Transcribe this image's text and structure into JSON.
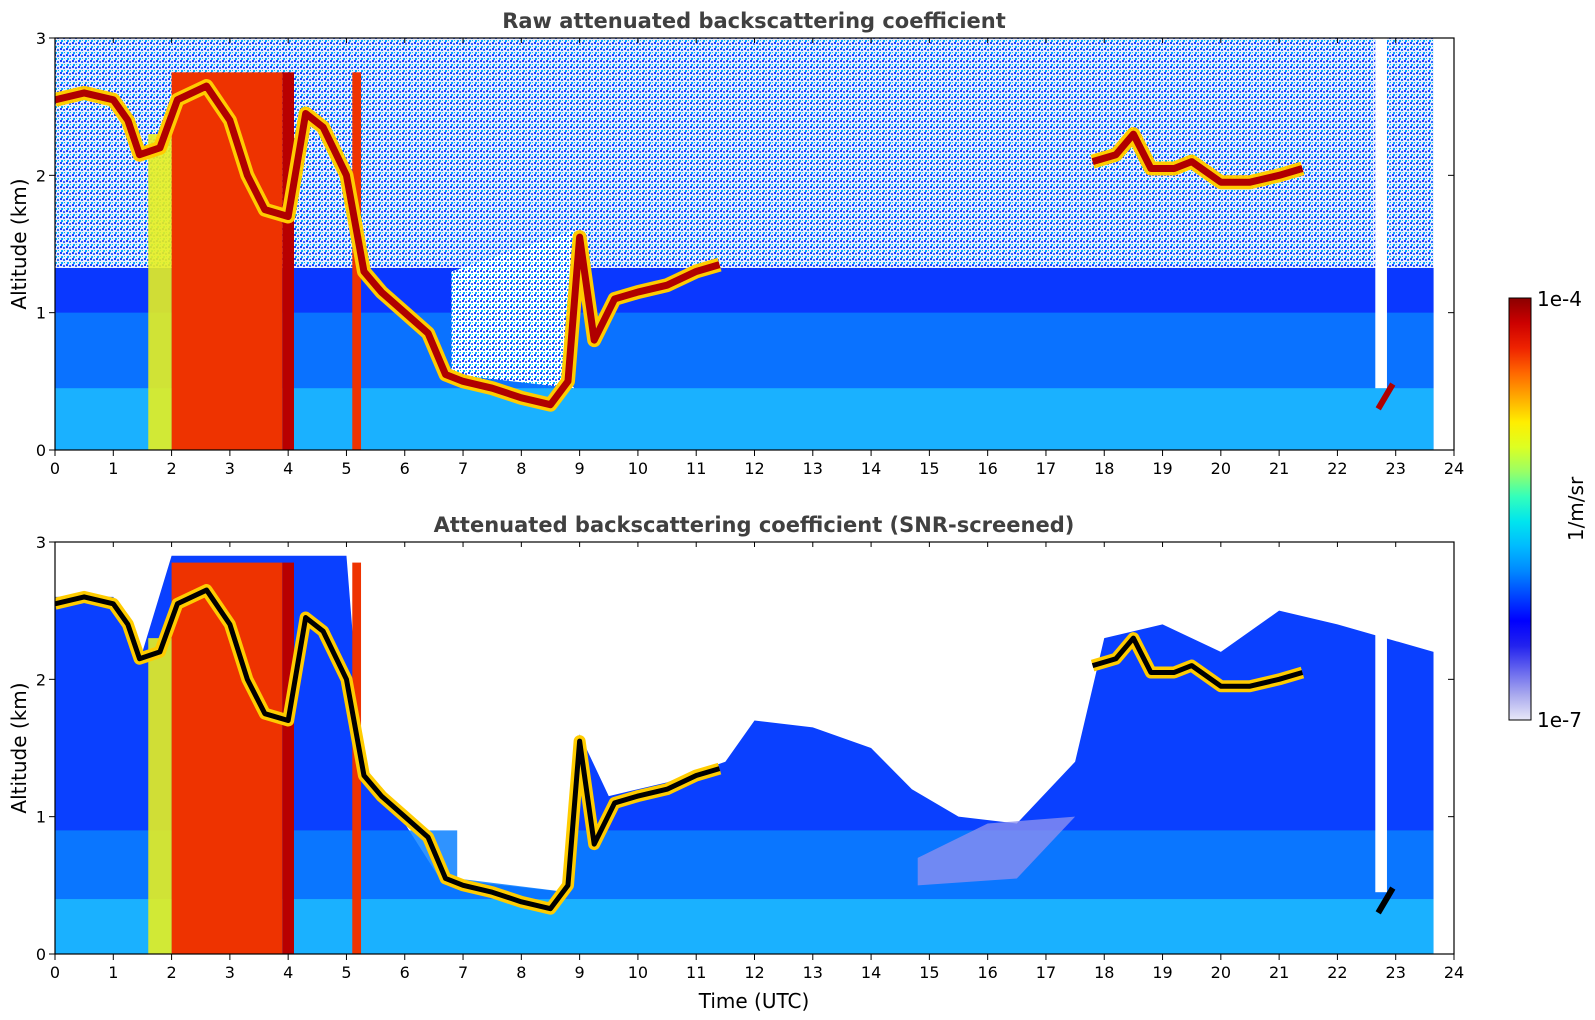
{
  "chart_data": [
    {
      "type": "heatmap",
      "title": "Raw attenuated backscattering coefficient",
      "xlabel": "",
      "ylabel": "Altitude (km)",
      "xlim": [
        0,
        24
      ],
      "ylim": [
        0,
        3
      ],
      "x_ticks": [
        "0",
        "1",
        "2",
        "3",
        "4",
        "5",
        "6",
        "7",
        "8",
        "9",
        "10",
        "11",
        "12",
        "13",
        "14",
        "15",
        "16",
        "17",
        "18",
        "19",
        "20",
        "21",
        "22",
        "23",
        "24"
      ],
      "y_ticks": [
        "0",
        "1",
        "2",
        "3"
      ],
      "screened": false,
      "features": {
        "cloud_layer": [
          [
            0,
            2.55
          ],
          [
            0.5,
            2.6
          ],
          [
            1.0,
            2.55
          ],
          [
            1.25,
            2.4
          ],
          [
            1.45,
            2.15
          ],
          [
            1.8,
            2.2
          ],
          [
            2.1,
            2.55
          ],
          [
            2.6,
            2.65
          ],
          [
            3.0,
            2.4
          ],
          [
            3.3,
            2.0
          ],
          [
            3.6,
            1.75
          ],
          [
            4.0,
            1.7
          ],
          [
            4.3,
            2.45
          ],
          [
            4.6,
            2.35
          ],
          [
            5.0,
            2.0
          ],
          [
            5.3,
            1.3
          ],
          [
            5.6,
            1.15
          ],
          [
            6.0,
            1.0
          ],
          [
            6.4,
            0.85
          ],
          [
            6.7,
            0.55
          ],
          [
            7.0,
            0.5
          ],
          [
            7.5,
            0.45
          ],
          [
            8.0,
            0.38
          ],
          [
            8.5,
            0.33
          ],
          [
            8.8,
            0.5
          ],
          [
            9.0,
            1.55
          ],
          [
            9.25,
            0.8
          ],
          [
            9.6,
            1.1
          ],
          [
            10.0,
            1.15
          ],
          [
            10.5,
            1.2
          ],
          [
            11.0,
            1.3
          ],
          [
            11.4,
            1.35
          ]
        ],
        "upper_cloud_layer": [
          [
            17.8,
            2.1
          ],
          [
            18.2,
            2.15
          ],
          [
            18.5,
            2.3
          ],
          [
            18.8,
            2.05
          ],
          [
            19.2,
            2.05
          ],
          [
            19.5,
            2.1
          ],
          [
            20.0,
            1.95
          ],
          [
            20.5,
            1.95
          ],
          [
            21.0,
            2.0
          ],
          [
            21.4,
            2.05
          ]
        ],
        "thick_columns": [
          [
            2.0,
            3.9
          ],
          [
            3.9,
            4.1
          ],
          [
            5.1,
            5.25
          ]
        ],
        "precip_dropout": [
          22.65,
          22.85
        ],
        "data_end": 23.65
      }
    },
    {
      "type": "heatmap",
      "title": "Attenuated backscattering coefficient (SNR-screened)",
      "xlabel": "Time (UTC)",
      "ylabel": "Altitude (km)",
      "xlim": [
        0,
        24
      ],
      "ylim": [
        0,
        3
      ],
      "x_ticks": [
        "0",
        "1",
        "2",
        "3",
        "4",
        "5",
        "6",
        "7",
        "8",
        "9",
        "10",
        "11",
        "12",
        "13",
        "14",
        "15",
        "16",
        "17",
        "18",
        "19",
        "20",
        "21",
        "22",
        "23",
        "24"
      ],
      "y_ticks": [
        "0",
        "1",
        "2",
        "3"
      ],
      "screened": true,
      "features": {
        "signal_top": [
          [
            0,
            2.6
          ],
          [
            1.0,
            2.6
          ],
          [
            1.5,
            2.2
          ],
          [
            2.0,
            2.9
          ],
          [
            3.0,
            2.9
          ],
          [
            4.0,
            2.9
          ],
          [
            5.0,
            2.9
          ],
          [
            5.3,
            1.3
          ],
          [
            6.0,
            0.95
          ],
          [
            6.6,
            0.55
          ],
          [
            8.8,
            0.45
          ],
          [
            9.0,
            1.6
          ],
          [
            9.5,
            1.15
          ],
          [
            10.5,
            1.25
          ],
          [
            11.5,
            1.4
          ],
          [
            12.0,
            1.7
          ],
          [
            13.0,
            1.65
          ],
          [
            14.0,
            1.5
          ],
          [
            14.7,
            1.2
          ],
          [
            15.5,
            1.0
          ],
          [
            16.5,
            0.95
          ],
          [
            17.5,
            1.4
          ],
          [
            18.0,
            2.3
          ],
          [
            19.0,
            2.4
          ],
          [
            20.0,
            2.2
          ],
          [
            21.0,
            2.5
          ],
          [
            22.0,
            2.4
          ],
          [
            23.65,
            2.2
          ]
        ]
      }
    }
  ],
  "colorbar": {
    "label": "1/m/sr",
    "max_label": "1e-4",
    "min_label": "1e-7",
    "scale": "log",
    "range": [
      1e-07,
      0.0001
    ],
    "colormap": [
      "#e8e8f8",
      "#aaaaee",
      "#6666ee",
      "#2222ee",
      "#0000ff",
      "#0044ff",
      "#0088ff",
      "#00bbff",
      "#00e5ee",
      "#33ffbb",
      "#99ff66",
      "#ddff22",
      "#ffee00",
      "#ffaa00",
      "#ff6600",
      "#ee2200",
      "#cc0000",
      "#8b0000"
    ]
  }
}
